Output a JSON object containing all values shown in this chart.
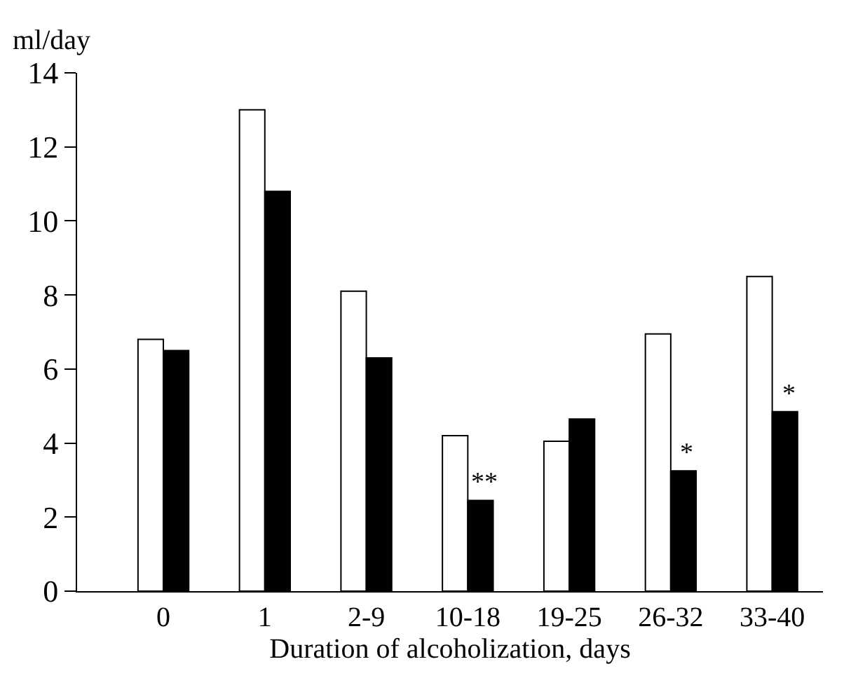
{
  "chart_data": {
    "type": "bar",
    "xlabel": "Duration of alcoholization, days",
    "ylabel": "ml/day",
    "categories": [
      "0",
      "1",
      "2-9",
      "10-18",
      "19-25",
      "26-32",
      "33-40"
    ],
    "series": [
      {
        "color": "#ffffff",
        "values": [
          6.8,
          13.0,
          8.1,
          4.2,
          4.05,
          6.95,
          8.5
        ]
      },
      {
        "color": "#000000",
        "values": [
          6.5,
          10.8,
          6.3,
          2.45,
          4.65,
          3.25,
          4.85
        ]
      }
    ],
    "ylim": [
      0,
      14
    ],
    "yticks": [
      0,
      2,
      4,
      6,
      8,
      10,
      12,
      14
    ],
    "annotations": [
      {
        "text": "**",
        "x": "10-18",
        "y": 2.45
      },
      {
        "text": "*",
        "x": "26-32",
        "y": 3.25
      },
      {
        "text": "*",
        "x": "33-40",
        "y": 4.85
      }
    ]
  }
}
